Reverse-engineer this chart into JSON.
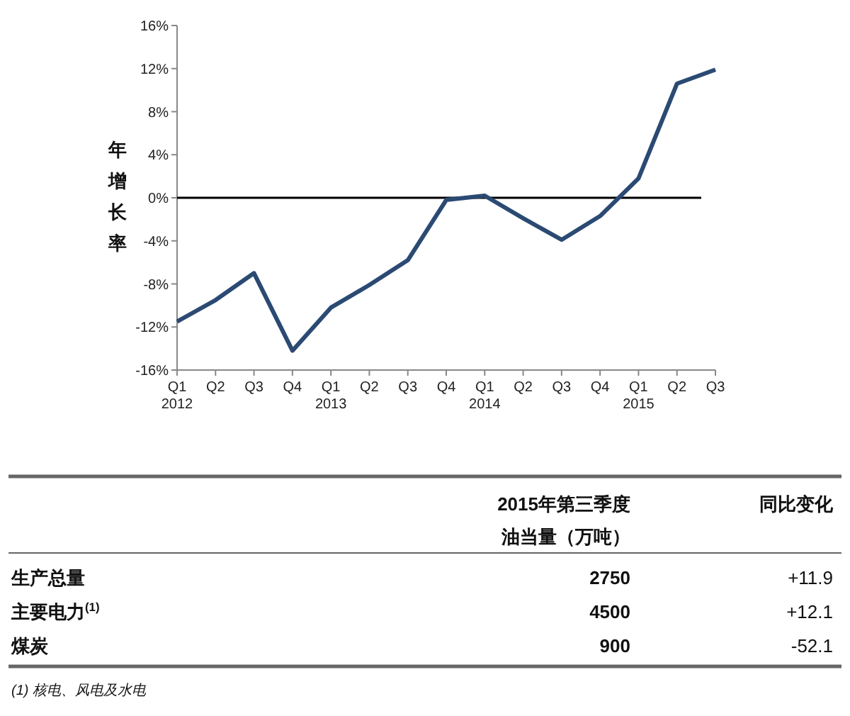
{
  "chart_data": [
    {
      "type": "line",
      "ylabel": "年增长率",
      "categories": [
        "Q1\n2012",
        "Q2",
        "Q3",
        "Q4",
        "Q1\n2013",
        "Q2",
        "Q3",
        "Q4",
        "Q1\n2014",
        "Q2",
        "Q3",
        "Q4",
        "Q1\n2015",
        "Q2",
        "Q3"
      ],
      "series": [
        {
          "color": "#2b4a73",
          "values": [
            -11.5,
            -9.5,
            -7,
            -14.2,
            -10.2,
            -8.1,
            -5.8,
            -0.2,
            0.2,
            -1.9,
            -3.9,
            -1.7,
            1.8,
            10.6,
            11.9
          ]
        }
      ],
      "ylim": [
        -16,
        16
      ],
      "yticks": [
        {
          "value": -16,
          "label": "-16%"
        },
        {
          "value": -12,
          "label": "-12%"
        },
        {
          "value": -8,
          "label": "-8%"
        },
        {
          "value": -4,
          "label": "-4%"
        },
        {
          "value": 0,
          "label": "0%"
        },
        {
          "value": 4,
          "label": "4%"
        },
        {
          "value": 8,
          "label": "8%"
        },
        {
          "value": 12,
          "label": "12%"
        },
        {
          "value": 16,
          "label": "16%"
        }
      ],
      "ref_lines": [
        {
          "axis": "y",
          "value": 0,
          "color": "#000000"
        }
      ],
      "grid": false,
      "line_style": "solid"
    },
    {
      "type": "other",
      "categories": [
        "生产总量",
        "主要电力$^{(1)}$",
        "煤炭"
      ],
      "series": [
        {
          "name": "2015年第三季度油当量（万吨）",
          "values": [
            2750,
            4500,
            900
          ]
        },
        {
          "name": "同比变化",
          "values": [
            11.9,
            12.1,
            -52.1
          ],
          "value_labels": [
            "+11.9",
            "+12.1",
            "-52.1"
          ]
        }
      ],
      "data_labels": true,
      "annotations": [
        "(1) 核电、风电及水电"
      ]
    }
  ]
}
